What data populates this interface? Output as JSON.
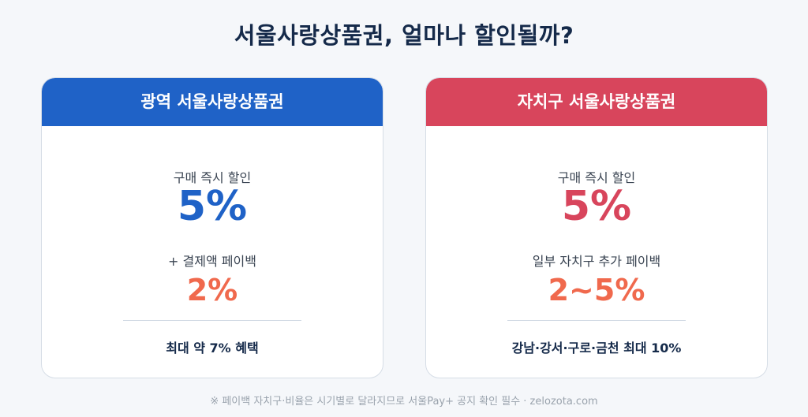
{
  "title": "서울사랑상품권, 얼마나 할인될까?",
  "cards": [
    {
      "header": "광역 서울사랑상품권",
      "label_1": "구매 즉시 할인",
      "value_1": "5%",
      "label_2": "+ 결제액 페이백",
      "value_2": "2%",
      "summary": "최대 약 7% 혜택",
      "accent_color": "#1f62c7"
    },
    {
      "header": "자치구 서울사랑상품권",
      "label_1": "구매 즉시 할인",
      "value_1": "5%",
      "label_2": "일부 자치구 추가 페이백",
      "value_2": "2~5%",
      "summary": "강남·강서·구로·금천 최대 10%",
      "accent_color": "#d8455c"
    }
  ],
  "footnote": "※ 페이백 자치구·비율은 시기별로 달라지므로 서울Pay+ 공지 확인 필수 · zelozota.com",
  "colors": {
    "title": "#152a4a",
    "payback": "#f0694d",
    "background": "#f5f7fa"
  }
}
